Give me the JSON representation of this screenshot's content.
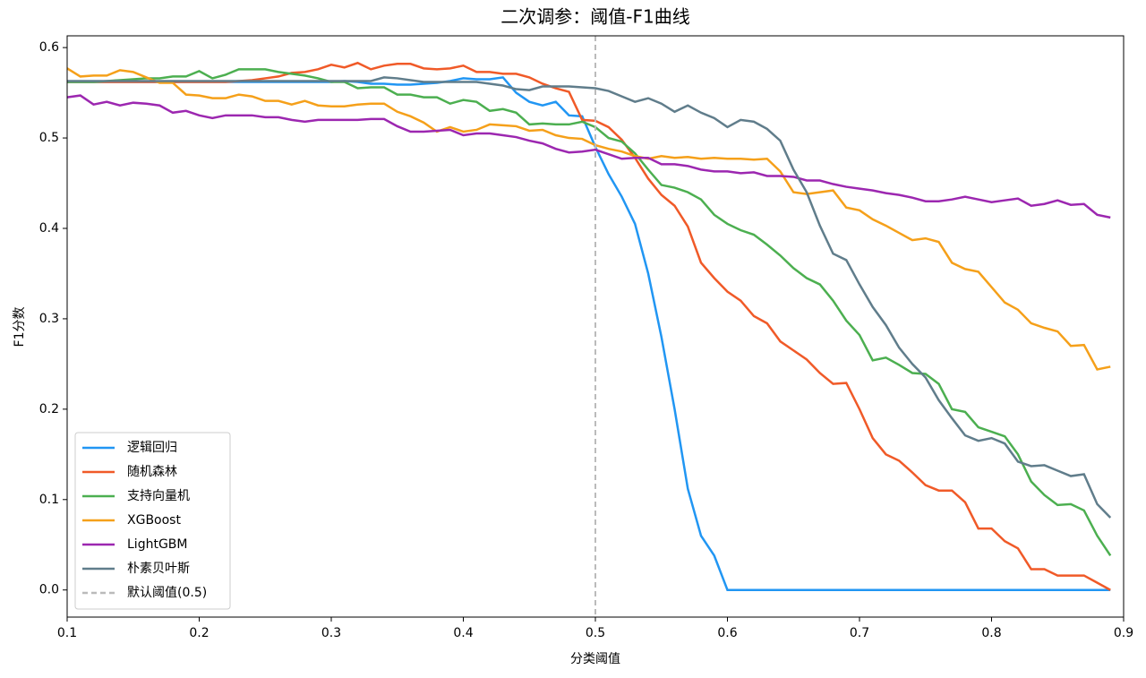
{
  "chart_data": {
    "type": "line",
    "title": "二次调参：阈值-F1曲线",
    "x_label": "分类阈值",
    "y_label": "F1分数",
    "x": [
      0.1,
      0.11,
      0.12,
      0.13,
      0.14,
      0.15,
      0.16,
      0.17,
      0.18,
      0.19,
      0.2,
      0.21,
      0.22,
      0.23,
      0.24,
      0.25,
      0.26,
      0.27,
      0.28,
      0.29,
      0.3,
      0.31,
      0.32,
      0.33,
      0.34,
      0.35,
      0.36,
      0.37,
      0.38,
      0.39,
      0.4,
      0.41,
      0.42,
      0.43,
      0.44,
      0.45,
      0.46,
      0.47,
      0.48,
      0.49,
      0.5,
      0.51,
      0.52,
      0.53,
      0.54,
      0.55,
      0.56,
      0.57,
      0.58,
      0.59,
      0.6,
      0.61,
      0.62,
      0.63,
      0.64,
      0.65,
      0.66,
      0.67,
      0.68,
      0.69,
      0.7,
      0.71,
      0.72,
      0.73,
      0.74,
      0.75,
      0.76,
      0.77,
      0.78,
      0.79,
      0.8,
      0.81,
      0.82,
      0.83,
      0.84,
      0.85,
      0.86,
      0.87,
      0.88,
      0.89
    ],
    "series": [
      {
        "name": "逻辑回归",
        "color": "#2196f3",
        "values": [
          0.562,
          0.562,
          0.562,
          0.562,
          0.562,
          0.562,
          0.562,
          0.562,
          0.562,
          0.562,
          0.562,
          0.562,
          0.562,
          0.562,
          0.562,
          0.562,
          0.562,
          0.562,
          0.562,
          0.562,
          0.562,
          0.563,
          0.562,
          0.56,
          0.56,
          0.559,
          0.559,
          0.56,
          0.561,
          0.563,
          0.566,
          0.565,
          0.565,
          0.567,
          0.55,
          0.54,
          0.536,
          0.54,
          0.525,
          0.524,
          0.49,
          0.46,
          0.435,
          0.405,
          0.35,
          0.28,
          0.2,
          0.112,
          0.06,
          0.038,
          0,
          0,
          0,
          0,
          0,
          0,
          0,
          0,
          0,
          0,
          0,
          0,
          0,
          0,
          0,
          0,
          0,
          0,
          0,
          0,
          0,
          0,
          0,
          0,
          0,
          0,
          0,
          0,
          0,
          0
        ]
      },
      {
        "name": "随机森林",
        "color": "#f05a28",
        "values": [
          0.562,
          0.562,
          0.562,
          0.562,
          0.562,
          0.562,
          0.562,
          0.562,
          0.562,
          0.562,
          0.562,
          0.562,
          0.562,
          0.563,
          0.564,
          0.566,
          0.568,
          0.572,
          0.573,
          0.576,
          0.581,
          0.578,
          0.583,
          0.576,
          0.58,
          0.582,
          0.582,
          0.577,
          0.576,
          0.577,
          0.58,
          0.573,
          0.573,
          0.571,
          0.571,
          0.567,
          0.56,
          0.555,
          0.551,
          0.52,
          0.519,
          0.512,
          0.498,
          0.478,
          0.455,
          0.437,
          0.425,
          0.402,
          0.362,
          0.345,
          0.33,
          0.32,
          0.303,
          0.295,
          0.275,
          0.265,
          0.255,
          0.24,
          0.228,
          0.229,
          0.2,
          0.168,
          0.15,
          0.143,
          0.13,
          0.116,
          0.11,
          0.11,
          0.097,
          0.068,
          0.068,
          0.054,
          0.046,
          0.023,
          0.023,
          0.016,
          0.016,
          0.016,
          0.008,
          0
        ]
      },
      {
        "name": "支持向量机",
        "color": "#4caf50",
        "values": [
          0.562,
          0.562,
          0.562,
          0.563,
          0.564,
          0.565,
          0.566,
          0.566,
          0.568,
          0.568,
          0.574,
          0.566,
          0.57,
          0.576,
          0.576,
          0.576,
          0.573,
          0.571,
          0.569,
          0.566,
          0.562,
          0.562,
          0.555,
          0.556,
          0.556,
          0.548,
          0.548,
          0.545,
          0.545,
          0.538,
          0.542,
          0.54,
          0.53,
          0.532,
          0.528,
          0.515,
          0.516,
          0.515,
          0.515,
          0.518,
          0.512,
          0.5,
          0.496,
          0.483,
          0.465,
          0.448,
          0.445,
          0.44,
          0.432,
          0.415,
          0.405,
          0.398,
          0.393,
          0.382,
          0.37,
          0.356,
          0.345,
          0.338,
          0.32,
          0.298,
          0.282,
          0.254,
          0.257,
          0.249,
          0.24,
          0.239,
          0.228,
          0.2,
          0.197,
          0.18,
          0.175,
          0.17,
          0.15,
          0.12,
          0.105,
          0.094,
          0.095,
          0.088,
          0.06,
          0.038
        ]
      },
      {
        "name": "XGBoost",
        "color": "#f5a01a",
        "values": [
          0.577,
          0.568,
          0.569,
          0.569,
          0.575,
          0.573,
          0.567,
          0.561,
          0.561,
          0.548,
          0.547,
          0.544,
          0.544,
          0.548,
          0.546,
          0.541,
          0.541,
          0.537,
          0.541,
          0.536,
          0.535,
          0.535,
          0.537,
          0.538,
          0.538,
          0.529,
          0.524,
          0.517,
          0.507,
          0.512,
          0.507,
          0.509,
          0.515,
          0.514,
          0.513,
          0.508,
          0.509,
          0.503,
          0.5,
          0.499,
          0.492,
          0.488,
          0.485,
          0.48,
          0.477,
          0.48,
          0.478,
          0.479,
          0.477,
          0.478,
          0.477,
          0.477,
          0.476,
          0.477,
          0.463,
          0.44,
          0.438,
          0.44,
          0.442,
          0.423,
          0.42,
          0.41,
          0.403,
          0.395,
          0.387,
          0.389,
          0.385,
          0.362,
          0.355,
          0.352,
          0.335,
          0.318,
          0.31,
          0.295,
          0.29,
          0.286,
          0.27,
          0.271,
          0.244,
          0.247
        ]
      },
      {
        "name": "LightGBM",
        "color": "#9c27b0",
        "values": [
          0.545,
          0.547,
          0.537,
          0.54,
          0.536,
          0.539,
          0.538,
          0.536,
          0.528,
          0.53,
          0.525,
          0.522,
          0.525,
          0.525,
          0.525,
          0.523,
          0.523,
          0.52,
          0.518,
          0.52,
          0.52,
          0.52,
          0.52,
          0.521,
          0.521,
          0.513,
          0.507,
          0.507,
          0.508,
          0.509,
          0.503,
          0.505,
          0.505,
          0.503,
          0.501,
          0.497,
          0.494,
          0.488,
          0.484,
          0.485,
          0.487,
          0.482,
          0.477,
          0.478,
          0.478,
          0.471,
          0.471,
          0.469,
          0.465,
          0.463,
          0.463,
          0.461,
          0.462,
          0.458,
          0.458,
          0.457,
          0.453,
          0.453,
          0.449,
          0.446,
          0.444,
          0.442,
          0.439,
          0.437,
          0.434,
          0.43,
          0.43,
          0.432,
          0.435,
          0.432,
          0.429,
          0.431,
          0.433,
          0.425,
          0.427,
          0.431,
          0.426,
          0.427,
          0.415,
          0.412
        ]
      },
      {
        "name": "朴素贝叶斯",
        "color": "#607d8b",
        "values": [
          0.563,
          0.563,
          0.563,
          0.563,
          0.563,
          0.563,
          0.563,
          0.563,
          0.563,
          0.563,
          0.563,
          0.563,
          0.563,
          0.563,
          0.563,
          0.563,
          0.563,
          0.563,
          0.563,
          0.563,
          0.563,
          0.563,
          0.563,
          0.563,
          0.567,
          0.566,
          0.564,
          0.562,
          0.562,
          0.562,
          0.562,
          0.562,
          0.56,
          0.558,
          0.554,
          0.553,
          0.557,
          0.557,
          0.557,
          0.556,
          0.555,
          0.552,
          0.546,
          0.54,
          0.544,
          0.538,
          0.529,
          0.536,
          0.528,
          0.522,
          0.512,
          0.52,
          0.518,
          0.51,
          0.497,
          0.465,
          0.44,
          0.403,
          0.372,
          0.365,
          0.338,
          0.313,
          0.293,
          0.268,
          0.25,
          0.235,
          0.21,
          0.19,
          0.171,
          0.165,
          0.168,
          0.162,
          0.142,
          0.137,
          0.138,
          0.132,
          0.126,
          0.128,
          0.095,
          0.08
        ]
      }
    ],
    "vline": {
      "x": 0.5,
      "name": "默认阈值(0.5)",
      "color": "#bbbbbb"
    },
    "xlim": [
      0.1,
      0.9
    ],
    "xticks": [
      0.1,
      0.2,
      0.3,
      0.4,
      0.5,
      0.6,
      0.7,
      0.8,
      0.9
    ],
    "ylim": [
      -0.03,
      0.613
    ],
    "yticks": [
      {
        "value": 0,
        "label": "0.0"
      },
      0.1,
      0.2,
      0.3,
      0.4,
      0.5,
      0.6
    ],
    "legend": "lower left"
  }
}
